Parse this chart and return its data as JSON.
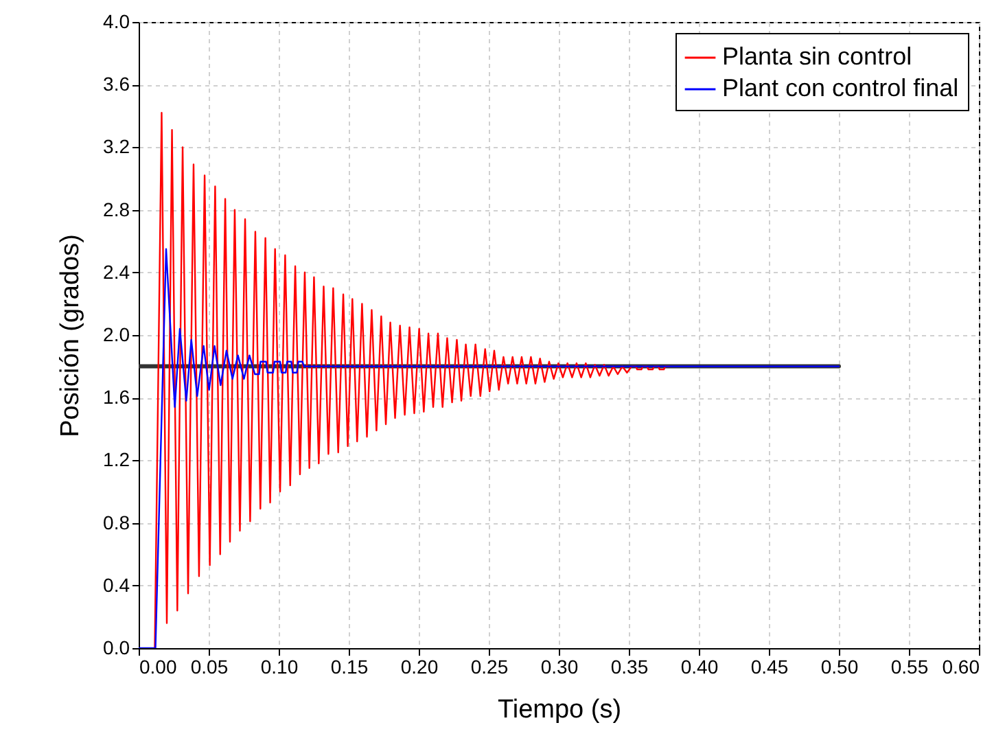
{
  "chart_data": {
    "type": "line",
    "xlabel": "Tiempo (s)",
    "ylabel": "Posición (grados)",
    "xlim": [
      0,
      0.6
    ],
    "ylim": [
      0,
      4.0
    ],
    "xticks": [
      {
        "value": 0,
        "label": "0.00"
      },
      0.05,
      {
        "value": 0.1,
        "label": "0.10"
      },
      0.15,
      {
        "value": 0.2,
        "label": "0.20"
      },
      0.25,
      {
        "value": 0.3,
        "label": "0.30"
      },
      0.35,
      {
        "value": 0.4,
        "label": "0.40"
      },
      0.45,
      {
        "value": 0.5,
        "label": "0.50"
      },
      0.55,
      {
        "value": 0.6,
        "label": "0.60"
      }
    ],
    "yticks": [
      {
        "value": 0,
        "label": "0.0"
      },
      0.4,
      0.8,
      1.2,
      1.6,
      {
        "value": 2,
        "label": "2.0"
      },
      2.4,
      2.8,
      3.2,
      3.6,
      {
        "value": 4,
        "label": "4.0"
      }
    ],
    "grid": true,
    "legend": "top right",
    "line_style": "solid",
    "marker": "none",
    "series": [
      {
        "color": "#333333",
        "x": [
          0,
          0.5
        ],
        "values": [
          1.8,
          1.8
        ]
      },
      {
        "name": "Planta sin control",
        "color": "#ff0000",
        "x": [
          0.0115,
          0.0164,
          0.0201,
          0.0238,
          0.0276,
          0.0314,
          0.0353,
          0.0392,
          0.0431,
          0.0471,
          0.0508,
          0.0546,
          0.0582,
          0.0618,
          0.0652,
          0.0686,
          0.0723,
          0.076,
          0.0796,
          0.0833,
          0.0869,
          0.0905,
          0.0939,
          0.0974,
          0.101,
          0.1046,
          0.1082,
          0.1118,
          0.1152,
          0.1186,
          0.1219,
          0.1252,
          0.1286,
          0.1321,
          0.1355,
          0.1389,
          0.1425,
          0.1461,
          0.1493,
          0.1526,
          0.156,
          0.1595,
          0.163,
          0.1664,
          0.1698,
          0.1732,
          0.1765,
          0.1797,
          0.1831,
          0.1866,
          0.19,
          0.1934,
          0.1968,
          0.2003,
          0.2036,
          0.2069,
          0.2103,
          0.2137,
          0.217,
          0.2203,
          0.2238,
          0.2272,
          0.2304,
          0.2336,
          0.2371,
          0.2405,
          0.244,
          0.2474,
          0.2506,
          0.2539,
          0.2572,
          0.2605,
          0.2638,
          0.267,
          0.2703,
          0.2735,
          0.2768,
          0.2801,
          0.2833,
          0.2866,
          0.2899,
          0.2931,
          0.2964,
          0.2997,
          0.3029,
          0.3062,
          0.3095,
          0.3127,
          0.316,
          0.3193,
          0.3225,
          0.3258,
          0.3291,
          0.3324,
          0.3356,
          0.3389,
          0.3421,
          0.3454,
          0.3487,
          0.352,
          0.355,
          0.356,
          0.359,
          0.36,
          0.363,
          0.364,
          0.367,
          0.368,
          0.371,
          0.372,
          0.375,
          0.376,
          0.379
        ],
        "values": [
          0,
          3.42,
          0.16,
          3.31,
          0.24,
          3.2,
          0.35,
          3.09,
          0.46,
          3.02,
          0.53,
          2.95,
          0.6,
          2.87,
          0.68,
          2.8,
          0.75,
          2.74,
          0.81,
          2.66,
          0.89,
          2.62,
          0.93,
          2.55,
          1.0,
          2.51,
          1.04,
          2.44,
          1.11,
          2.4,
          1.15,
          2.37,
          1.18,
          2.31,
          1.24,
          2.3,
          1.25,
          2.26,
          1.29,
          2.23,
          1.32,
          2.2,
          1.35,
          2.16,
          1.39,
          2.12,
          1.43,
          2.08,
          1.47,
          2.06,
          1.49,
          2.05,
          1.5,
          2.04,
          1.51,
          2.01,
          1.54,
          2.01,
          1.54,
          1.98,
          1.57,
          1.97,
          1.58,
          1.94,
          1.61,
          1.94,
          1.61,
          1.91,
          1.64,
          1.9,
          1.65,
          1.86,
          1.69,
          1.86,
          1.69,
          1.86,
          1.69,
          1.86,
          1.69,
          1.85,
          1.7,
          1.83,
          1.72,
          1.82,
          1.73,
          1.82,
          1.73,
          1.82,
          1.73,
          1.82,
          1.73,
          1.81,
          1.74,
          1.81,
          1.74,
          1.8,
          1.75,
          1.8,
          1.76,
          1.8,
          1.8,
          1.78,
          1.78,
          1.8,
          1.8,
          1.78,
          1.78,
          1.8,
          1.8,
          1.78,
          1.78,
          1.8,
          1.8
        ]
      },
      {
        "name": "Plant con control final",
        "color": "#0000ff",
        "x": [
          0,
          0.012,
          0.0196,
          0.0258,
          0.0294,
          0.034,
          0.0376,
          0.0418,
          0.0464,
          0.0503,
          0.0542,
          0.0585,
          0.0627,
          0.067,
          0.0709,
          0.0752,
          0.0791,
          0.083,
          0.086,
          0.087,
          0.091,
          0.092,
          0.096,
          0.097,
          0.101,
          0.102,
          0.105,
          0.106,
          0.109,
          0.11,
          0.113,
          0.114,
          0.117,
          0.118,
          0.5
        ],
        "values": [
          0,
          0,
          2.55,
          1.54,
          2.04,
          1.58,
          1.97,
          1.61,
          1.93,
          1.65,
          1.93,
          1.68,
          1.9,
          1.72,
          1.87,
          1.72,
          1.87,
          1.75,
          1.75,
          1.83,
          1.83,
          1.76,
          1.76,
          1.83,
          1.83,
          1.76,
          1.76,
          1.83,
          1.83,
          1.76,
          1.76,
          1.83,
          1.83,
          1.8,
          1.8
        ]
      }
    ]
  }
}
